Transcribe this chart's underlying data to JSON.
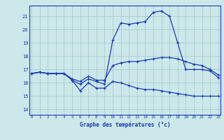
{
  "xlabel": "Graphe des températures (°c)",
  "bg_color": "#cce8ea",
  "grid_color": "#aacccc",
  "line_color": "#1a3ab5",
  "x_ticks": [
    0,
    1,
    2,
    3,
    4,
    5,
    6,
    7,
    8,
    9,
    10,
    11,
    12,
    13,
    14,
    15,
    16,
    17,
    18,
    19,
    20,
    21,
    22,
    23
  ],
  "y_ticks": [
    14,
    15,
    16,
    17,
    18,
    19,
    20,
    21
  ],
  "ylim": [
    13.6,
    21.8
  ],
  "xlim": [
    -0.3,
    23.3
  ],
  "series1_y": [
    16.7,
    16.8,
    16.7,
    16.7,
    16.7,
    16.2,
    15.4,
    16.0,
    15.6,
    15.6,
    16.1,
    16.0,
    15.8,
    15.6,
    15.5,
    15.5,
    15.4,
    15.3,
    15.2,
    15.1,
    15.0,
    15.0,
    15.0,
    15.0
  ],
  "series2_y": [
    16.7,
    16.8,
    16.7,
    16.7,
    16.7,
    16.3,
    16.1,
    16.5,
    16.2,
    16.2,
    17.3,
    17.5,
    17.6,
    17.6,
    17.7,
    17.8,
    17.9,
    17.9,
    17.8,
    17.6,
    17.4,
    17.3,
    17.0,
    16.6
  ],
  "series3_y": [
    16.7,
    16.8,
    16.7,
    16.7,
    16.7,
    16.2,
    15.9,
    16.3,
    16.1,
    15.9,
    19.2,
    20.5,
    20.4,
    20.5,
    20.6,
    21.3,
    21.4,
    21.0,
    19.0,
    17.0,
    17.0,
    17.0,
    16.9,
    16.4
  ]
}
